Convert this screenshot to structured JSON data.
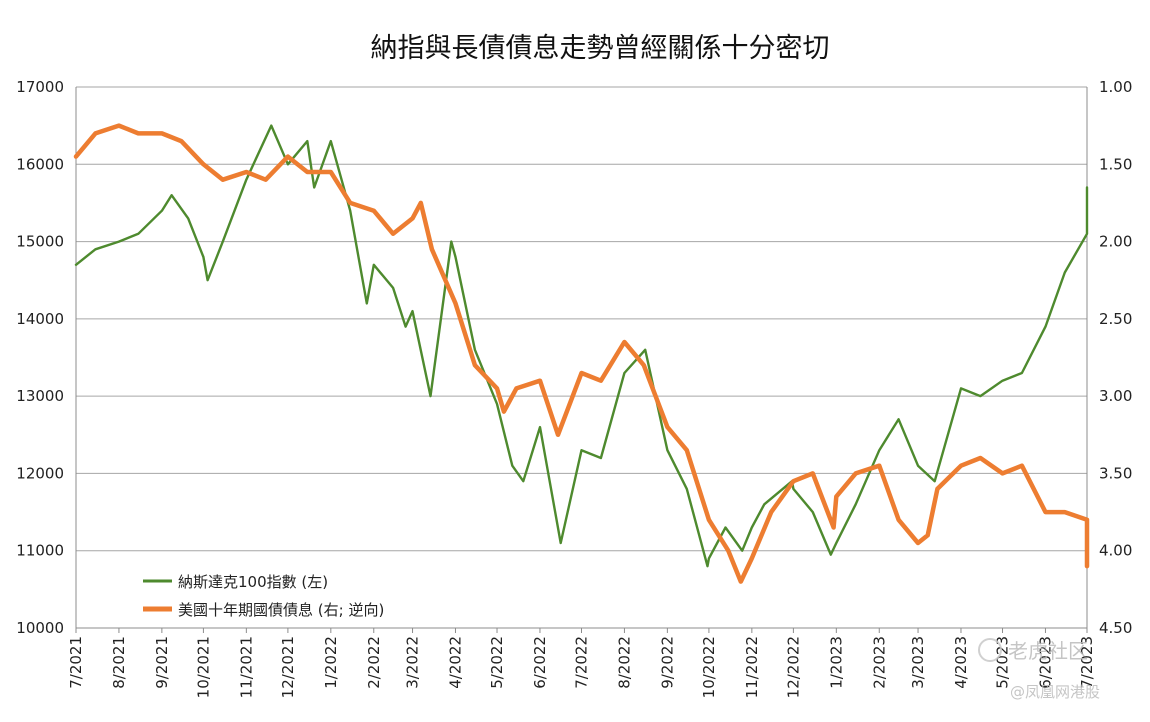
{
  "chart_data": {
    "type": "line",
    "title": "納指與長債債息走勢曾經關係十分密切",
    "x_tick_labels": [
      "7/2021",
      "8/2021",
      "9/2021",
      "10/2021",
      "11/2021",
      "12/2021",
      "1/2022",
      "2/2022",
      "3/2022",
      "4/2022",
      "5/2022",
      "6/2022",
      "7/2022",
      "8/2022",
      "9/2022",
      "10/2022",
      "11/2022",
      "12/2022",
      "1/2023",
      "2/2023",
      "3/2023",
      "4/2023",
      "5/2023",
      "6/2023",
      "7/2023"
    ],
    "y_left": {
      "ylim": [
        10000,
        17000
      ],
      "ticks": [
        "10000",
        "11000",
        "12000",
        "13000",
        "14000",
        "15000",
        "16000",
        "17000"
      ]
    },
    "y_right": {
      "ylim": [
        1.0,
        4.5
      ],
      "inverted": true,
      "ticks": [
        "1.00",
        "1.50",
        "2.00",
        "2.50",
        "3.00",
        "3.50",
        "4.00",
        "4.50"
      ]
    },
    "grid": true,
    "legend": {
      "position": "bottom-left"
    },
    "series": [
      {
        "name": "納斯達克100指數 (左)",
        "axis": "left",
        "color": "#4e8a2e",
        "x": [
          "2021-07-01",
          "2021-07-15",
          "2021-08-01",
          "2021-08-15",
          "2021-09-01",
          "2021-09-08",
          "2021-09-20",
          "2021-10-01",
          "2021-10-04",
          "2021-10-15",
          "2021-11-01",
          "2021-11-19",
          "2021-12-01",
          "2021-12-15",
          "2021-12-20",
          "2022-01-01",
          "2022-01-15",
          "2022-01-27",
          "2022-02-01",
          "2022-02-15",
          "2022-02-24",
          "2022-03-01",
          "2022-03-14",
          "2022-03-29",
          "2022-04-01",
          "2022-04-15",
          "2022-05-01",
          "2022-05-12",
          "2022-05-20",
          "2022-06-01",
          "2022-06-16",
          "2022-07-01",
          "2022-07-15",
          "2022-08-01",
          "2022-08-16",
          "2022-09-01",
          "2022-09-15",
          "2022-09-30",
          "2022-10-01",
          "2022-10-13",
          "2022-10-25",
          "2022-11-01",
          "2022-11-10",
          "2022-11-30",
          "2022-12-01",
          "2022-12-15",
          "2022-12-28",
          "2023-01-01",
          "2023-01-15",
          "2023-02-01",
          "2023-02-15",
          "2023-03-01",
          "2023-03-13",
          "2023-04-01",
          "2023-04-15",
          "2023-05-01",
          "2023-05-15",
          "2023-06-01",
          "2023-06-15",
          "2023-07-01",
          "2023-07-19",
          "2023-07-28"
        ],
        "values": [
          14700,
          14900,
          15000,
          15100,
          15400,
          15600,
          15300,
          14800,
          14500,
          15000,
          15800,
          16500,
          16000,
          16300,
          15700,
          16300,
          15400,
          14200,
          14700,
          14400,
          13900,
          14100,
          13000,
          15000,
          14800,
          13600,
          12900,
          12100,
          11900,
          12600,
          11100,
          12300,
          12200,
          13300,
          13600,
          12300,
          11800,
          10800,
          10900,
          11300,
          11000,
          11300,
          11600,
          11900,
          11800,
          11500,
          10950,
          11100,
          11600,
          12300,
          12700,
          12100,
          11900,
          13100,
          13000,
          13200,
          13300,
          13900,
          14600,
          15100,
          15700,
          15500
        ]
      },
      {
        "name": "美國十年期國債債息 (右; 逆向)",
        "axis": "right",
        "color": "#ed7d31",
        "x": [
          "2021-07-01",
          "2021-07-15",
          "2021-08-01",
          "2021-08-15",
          "2021-09-01",
          "2021-09-15",
          "2021-10-01",
          "2021-10-15",
          "2021-11-01",
          "2021-11-15",
          "2021-12-01",
          "2021-12-15",
          "2022-01-01",
          "2022-01-15",
          "2022-02-01",
          "2022-02-15",
          "2022-03-01",
          "2022-03-07",
          "2022-03-15",
          "2022-04-01",
          "2022-04-15",
          "2022-05-01",
          "2022-05-06",
          "2022-05-15",
          "2022-06-01",
          "2022-06-14",
          "2022-07-01",
          "2022-07-15",
          "2022-08-01",
          "2022-08-15",
          "2022-09-01",
          "2022-09-15",
          "2022-10-01",
          "2022-10-15",
          "2022-10-24",
          "2022-11-01",
          "2022-11-15",
          "2022-12-01",
          "2022-12-15",
          "2022-12-30",
          "2023-01-01",
          "2023-01-15",
          "2023-02-01",
          "2023-02-15",
          "2023-03-01",
          "2023-03-08",
          "2023-03-15",
          "2023-04-01",
          "2023-04-15",
          "2023-05-01",
          "2023-05-15",
          "2023-06-01",
          "2023-06-15",
          "2023-07-01",
          "2023-07-15",
          "2023-07-28"
        ],
        "values": [
          1.45,
          1.3,
          1.25,
          1.3,
          1.3,
          1.35,
          1.5,
          1.6,
          1.55,
          1.6,
          1.45,
          1.55,
          1.55,
          1.75,
          1.8,
          1.95,
          1.85,
          1.75,
          2.05,
          2.4,
          2.8,
          2.95,
          3.1,
          2.95,
          2.9,
          3.25,
          2.85,
          2.9,
          2.65,
          2.8,
          3.2,
          3.35,
          3.8,
          4.0,
          4.2,
          4.05,
          3.75,
          3.55,
          3.5,
          3.85,
          3.65,
          3.5,
          3.45,
          3.8,
          3.95,
          3.9,
          3.6,
          3.45,
          3.4,
          3.5,
          3.45,
          3.75,
          3.75,
          3.8,
          3.85,
          4.1
        ]
      }
    ]
  },
  "watermark": {
    "site": "老虎社区",
    "source": "@凤凰网港股"
  }
}
